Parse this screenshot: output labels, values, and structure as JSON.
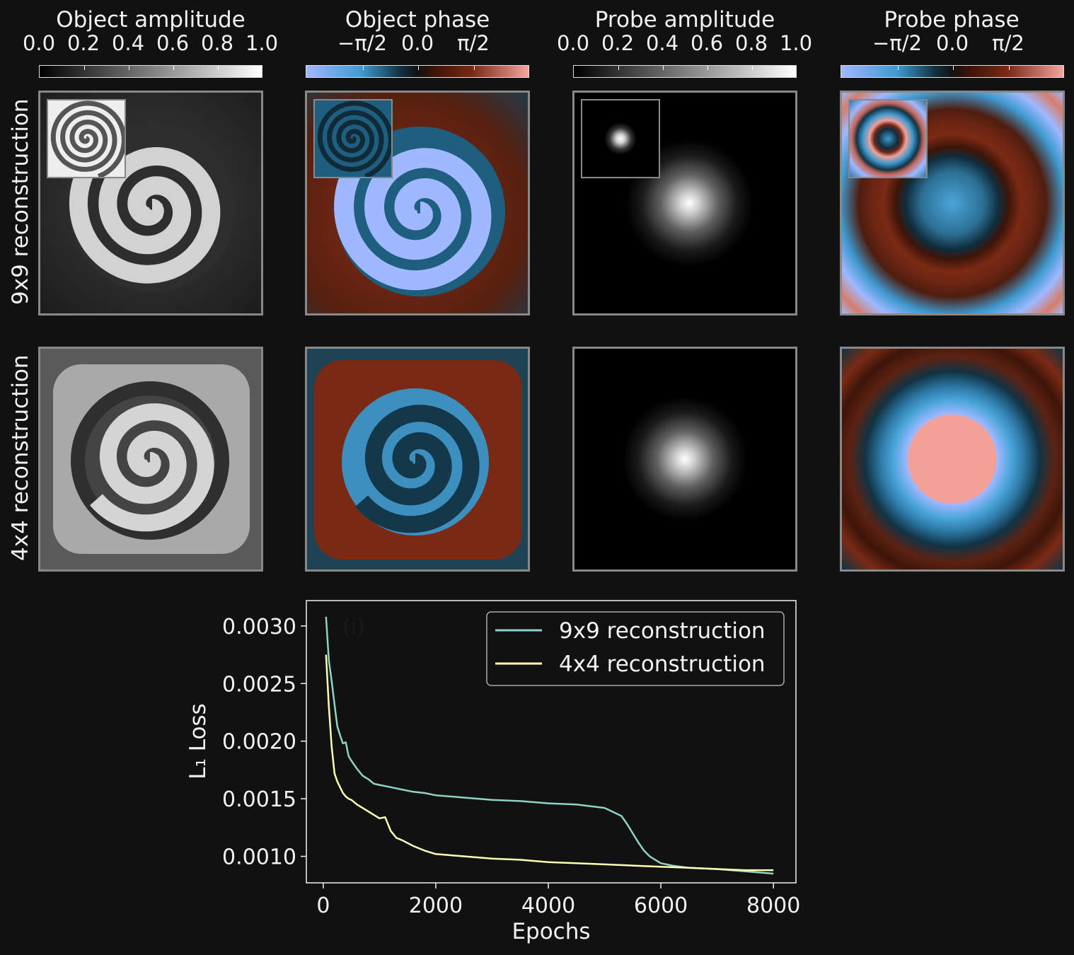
{
  "columns": [
    {
      "title": "Object amplitude",
      "ticks": [
        "0.0",
        "0.2",
        "0.4",
        "0.6",
        "0.8",
        "1.0"
      ],
      "colormap": "gray"
    },
    {
      "title": "Object phase",
      "ticks": [
        "−π/2",
        "0.0",
        "π/2"
      ],
      "colormap": "berlin"
    },
    {
      "title": "Probe amplitude",
      "ticks": [
        "0.0",
        "0.2",
        "0.4",
        "0.6",
        "0.8",
        "1.0"
      ],
      "colormap": "gray"
    },
    {
      "title": "Probe phase",
      "ticks": [
        "−π/2",
        "0.0",
        "π/2"
      ],
      "colormap": "berlin"
    }
  ],
  "rows": [
    {
      "label": "9x9 reconstruction"
    },
    {
      "label": "4x4 reconstruction"
    }
  ],
  "colors": {
    "background": "#111111",
    "frame": "#888888",
    "berlin_neg": "#9fb8ff",
    "berlin_mid_neg": "#3f9ad0",
    "berlin_zero": "#111111",
    "berlin_mid_pos": "#7a2a14",
    "berlin_pos": "#f4a6a0"
  },
  "chart_data": {
    "type": "line",
    "panel_label": "(i)",
    "xlabel": "Epochs",
    "ylabel": "L₁ Loss",
    "xlim": [
      -300,
      8400
    ],
    "ylim": [
      0.00077,
      0.00322
    ],
    "xticks": [
      0,
      2000,
      4000,
      6000,
      8000
    ],
    "yticks": [
      0.001,
      0.0015,
      0.002,
      0.0025,
      0.003
    ],
    "xtick_labels": [
      "0",
      "2000",
      "4000",
      "6000",
      "8000"
    ],
    "ytick_labels": [
      "0.0010",
      "0.0015",
      "0.0020",
      "0.0025",
      "0.0030"
    ],
    "legend_position": "top-right",
    "series": [
      {
        "name": "9x9 reconstruction",
        "color": "#8dd3c7",
        "x": [
          50,
          100,
          150,
          200,
          250,
          300,
          350,
          400,
          450,
          500,
          600,
          700,
          800,
          900,
          1000,
          1200,
          1400,
          1600,
          1800,
          2000,
          2500,
          3000,
          3500,
          4000,
          4500,
          5000,
          5300,
          5400,
          5500,
          5600,
          5700,
          5800,
          5900,
          6000,
          6100,
          6200,
          6500,
          7000,
          7500,
          8000
        ],
        "y": [
          0.00308,
          0.0027,
          0.00252,
          0.00232,
          0.00213,
          0.00205,
          0.00198,
          0.00199,
          0.00187,
          0.00183,
          0.00176,
          0.0017,
          0.00167,
          0.00163,
          0.00162,
          0.0016,
          0.00158,
          0.00156,
          0.00155,
          0.00153,
          0.00151,
          0.00149,
          0.00148,
          0.00146,
          0.00145,
          0.00142,
          0.00135,
          0.00128,
          0.0012,
          0.00112,
          0.00105,
          0.001,
          0.00097,
          0.00094,
          0.00093,
          0.00092,
          0.0009,
          0.00089,
          0.00087,
          0.00085
        ]
      },
      {
        "name": "4x4 reconstruction",
        "color": "#ffffb3",
        "x": [
          50,
          100,
          150,
          200,
          250,
          300,
          350,
          400,
          450,
          500,
          600,
          700,
          800,
          900,
          1000,
          1100,
          1200,
          1300,
          1400,
          1600,
          1800,
          2000,
          2500,
          3000,
          3500,
          4000,
          4500,
          5000,
          5500,
          6000,
          6500,
          7000,
          7500,
          8000
        ],
        "y": [
          0.00275,
          0.0023,
          0.00195,
          0.00172,
          0.00165,
          0.0016,
          0.00155,
          0.00152,
          0.0015,
          0.00149,
          0.00145,
          0.00142,
          0.00139,
          0.00136,
          0.00133,
          0.00134,
          0.00122,
          0.00116,
          0.00114,
          0.00109,
          0.00105,
          0.00102,
          0.001,
          0.00098,
          0.00097,
          0.00095,
          0.00094,
          0.00093,
          0.00092,
          0.00091,
          0.0009,
          0.00089,
          0.00088,
          0.00088
        ]
      }
    ]
  }
}
